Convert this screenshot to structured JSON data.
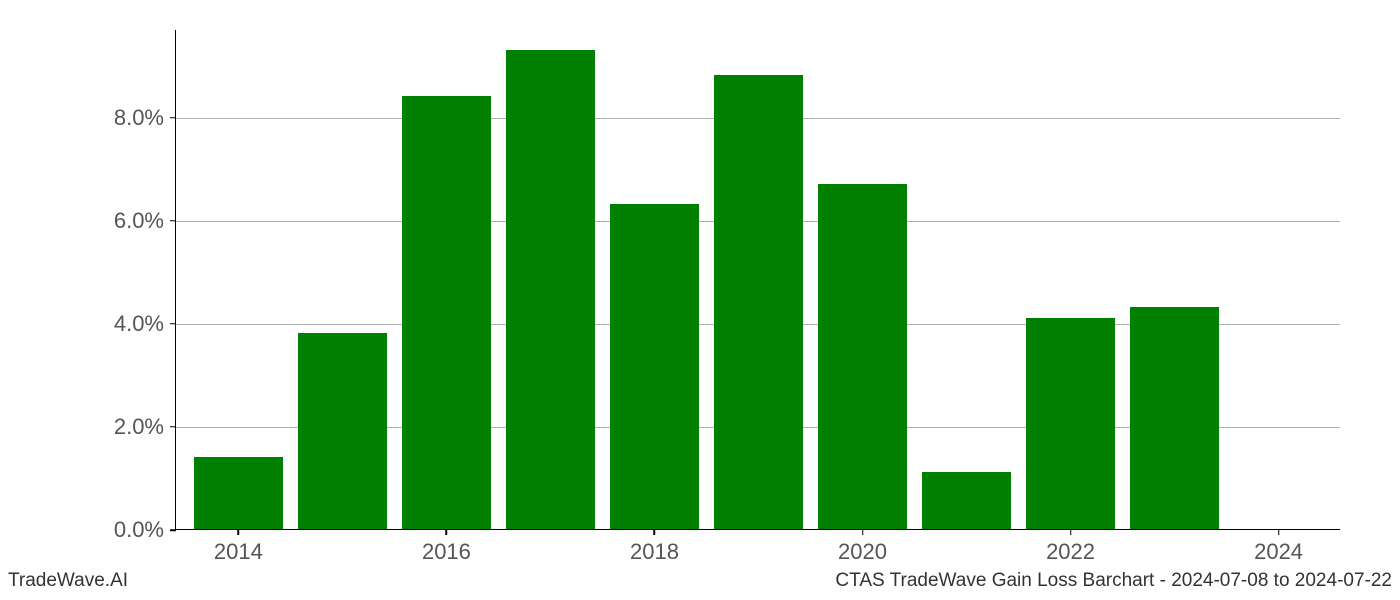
{
  "chart": {
    "type": "bar",
    "years": [
      2014,
      2015,
      2016,
      2017,
      2018,
      2019,
      2020,
      2021,
      2022,
      2023,
      2024
    ],
    "values_pct": [
      1.4,
      3.8,
      8.4,
      9.3,
      6.3,
      8.8,
      6.7,
      1.1,
      4.1,
      4.3,
      0.0
    ],
    "bar_color": "#008000",
    "background_color": "#ffffff",
    "ylim": [
      0.0,
      9.7
    ],
    "yticks": [
      0.0,
      2.0,
      4.0,
      6.0,
      8.0
    ],
    "ytick_labels": [
      "0.0%",
      "2.0%",
      "4.0%",
      "6.0%",
      "8.0%"
    ],
    "xlim": [
      2013.4,
      2024.6
    ],
    "xticks": [
      2014,
      2016,
      2018,
      2020,
      2022,
      2024
    ],
    "xtick_labels": [
      "2014",
      "2016",
      "2018",
      "2020",
      "2022",
      "2024"
    ],
    "grid_color": "#b0b0b0",
    "axis_color": "#000000",
    "tick_label_color": "#555555",
    "tick_fontsize": 22,
    "bar_width_years": 0.85
  },
  "footer": {
    "left": "TradeWave.AI",
    "right": "CTAS TradeWave Gain Loss Barchart - 2024-07-08 to 2024-07-22",
    "fontsize": 19,
    "color": "#333333"
  }
}
